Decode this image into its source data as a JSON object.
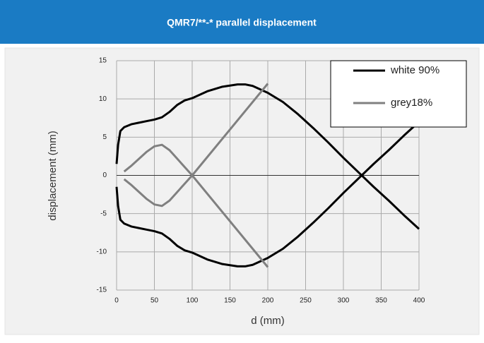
{
  "chart_data": {
    "type": "line",
    "title": "QMR7/**-*  parallel displacement",
    "x_label": "d (mm)",
    "y_label": "displacement (mm)",
    "xlim": [
      0,
      400
    ],
    "xticks": [
      0,
      50,
      100,
      150,
      200,
      250,
      300,
      350,
      400
    ],
    "ylim": [
      -15,
      15
    ],
    "yticks": [
      -15,
      -10,
      -5,
      0,
      5,
      10,
      15
    ],
    "grid": true,
    "legend": "upper right",
    "series": [
      {
        "name": "white 90%",
        "color": "#000000",
        "x": [
          0,
          2,
          5,
          10,
          20,
          30,
          40,
          50,
          60,
          70,
          80,
          90,
          100,
          120,
          140,
          160,
          170,
          180,
          200,
          220,
          240,
          260,
          280,
          300,
          320,
          340,
          360,
          380,
          400
        ],
        "values": [
          1.5,
          4,
          5.8,
          6.3,
          6.7,
          6.9,
          7.1,
          7.3,
          7.6,
          8.3,
          9.2,
          9.8,
          10.1,
          11,
          11.6,
          11.9,
          11.9,
          11.7,
          10.8,
          9.6,
          8,
          6.2,
          4.3,
          2.3,
          0.4,
          -1.5,
          -3.3,
          -5.2,
          -7
        ]
      },
      {
        "color": "#000000",
        "x": [
          0,
          2,
          5,
          10,
          20,
          30,
          40,
          50,
          60,
          70,
          80,
          90,
          100,
          120,
          140,
          160,
          170,
          180,
          200,
          220,
          240,
          260,
          280,
          300,
          320,
          340,
          360,
          380,
          400
        ],
        "values": [
          -1.5,
          -4,
          -5.8,
          -6.3,
          -6.7,
          -6.9,
          -7.1,
          -7.3,
          -7.6,
          -8.3,
          -9.2,
          -9.8,
          -10.1,
          -11,
          -11.6,
          -11.9,
          -11.9,
          -11.7,
          -10.8,
          -9.6,
          -8,
          -6.2,
          -4.3,
          -2.3,
          -0.4,
          1.5,
          3.3,
          5.2,
          7
        ]
      },
      {
        "name": "grey18%",
        "color": "#808080",
        "x": [
          10,
          20,
          30,
          40,
          50,
          60,
          70,
          80,
          90,
          100,
          200
        ],
        "values": [
          0.5,
          1.3,
          2.2,
          3.1,
          3.8,
          4,
          3.3,
          2.2,
          1.1,
          0,
          12
        ]
      },
      {
        "color": "#808080",
        "x": [
          10,
          20,
          30,
          40,
          50,
          60,
          70,
          80,
          90,
          100,
          200
        ],
        "values": [
          -0.5,
          -1.3,
          -2.2,
          -3.1,
          -3.8,
          -4,
          -3.3,
          -2.2,
          -1.1,
          0,
          -12
        ]
      }
    ]
  }
}
